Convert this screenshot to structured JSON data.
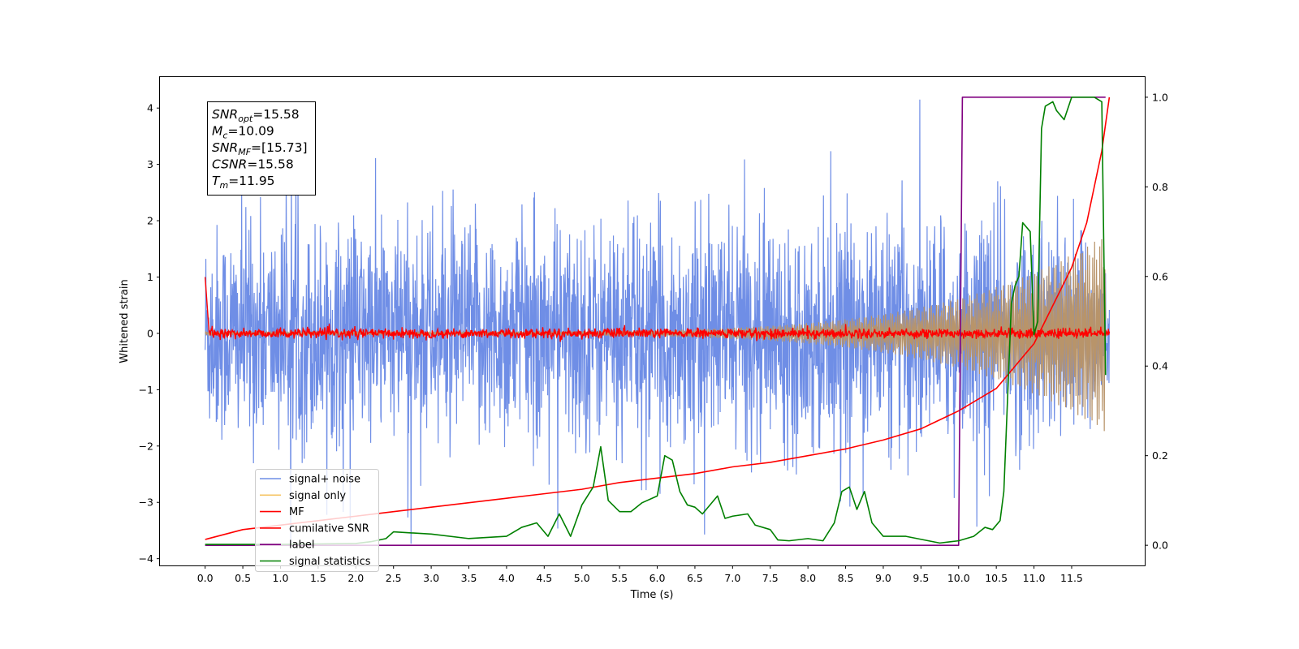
{
  "chart_data": {
    "type": "line",
    "title": "",
    "xlabel": "Time (s)",
    "ylabel": "Whitened strain",
    "xlim": [
      -0.6,
      12.47
    ],
    "ylim_left": [
      -4.12,
      4.55
    ],
    "ylim_right": [
      -0.045,
      1.045
    ],
    "grid": false,
    "legend_placement": "lower-left",
    "x_ticks": [
      "0.0",
      "0.5",
      "1.0",
      "1.5",
      "2.0",
      "2.5",
      "3.0",
      "3.5",
      "4.0",
      "4.5",
      "5.0",
      "5.5",
      "6.0",
      "6.5",
      "7.0",
      "7.5",
      "8.0",
      "8.5",
      "9.0",
      "9.5",
      "10.0",
      "10.5",
      "11.0",
      "11.5"
    ],
    "y_ticks_left": [
      "−4",
      "−3",
      "−2",
      "−1",
      "0",
      "1",
      "2",
      "3",
      "4"
    ],
    "y_ticks_right": [
      "0.0",
      "0.2",
      "0.4",
      "0.6",
      "0.8",
      "1.0"
    ],
    "annotation_box": {
      "lines": [
        {
          "main": "SNR",
          "sub": "opt",
          "rest": "=15.58"
        },
        {
          "main": "M",
          "sub": "c",
          "rest": "=10.09"
        },
        {
          "main": "SNR",
          "sub": "MF",
          "rest": "=[15.73]"
        },
        {
          "main": "CSNR",
          "sub": "",
          "rest": "=15.58"
        },
        {
          "main": "T",
          "sub": "m",
          "rest": "=11.95"
        }
      ]
    },
    "colors": {
      "noise": "#6f8ee6",
      "signal": "#b8946a",
      "signal_legend": "#f5c463",
      "mf": "#ff0000",
      "csnr": "#ff0000",
      "label": "#800080",
      "stats": "#008000"
    },
    "series": [
      {
        "name": "signal+ noise",
        "axis": "left",
        "style": "band",
        "t_start": 0.0,
        "t_end": 12.0,
        "typical_amplitude": 1.9,
        "peak_amplitude": 4.15
      },
      {
        "name": "signal only",
        "axis": "left",
        "style": "chirp",
        "t_start": 0.0,
        "t_end": 11.95,
        "amplitude_start": 0.03,
        "amplitude_end": 1.75
      },
      {
        "name": "MF",
        "axis": "left",
        "style": "noise",
        "t_start": 0.0,
        "t_end": 12.0,
        "start_value": 1.0,
        "amplitude": 0.08
      },
      {
        "name": "cumilative SNR",
        "axis": "right",
        "x": [
          0.0,
          0.5,
          1.0,
          1.5,
          2.0,
          2.5,
          3.0,
          3.5,
          4.0,
          4.5,
          5.0,
          5.5,
          6.0,
          6.5,
          7.0,
          7.5,
          8.0,
          8.5,
          9.0,
          9.5,
          10.0,
          10.5,
          11.0,
          11.5,
          11.7,
          11.9,
          12.0
        ],
        "y": [
          0.013,
          0.035,
          0.045,
          0.055,
          0.065,
          0.075,
          0.085,
          0.095,
          0.105,
          0.115,
          0.125,
          0.14,
          0.15,
          0.16,
          0.175,
          0.185,
          0.2,
          0.215,
          0.235,
          0.26,
          0.3,
          0.35,
          0.45,
          0.62,
          0.72,
          0.88,
          1.0
        ]
      },
      {
        "name": "label",
        "axis": "right",
        "x": [
          0.0,
          10.0,
          10.05,
          11.95
        ],
        "y": [
          0.0,
          0.0,
          1.0,
          1.0
        ]
      },
      {
        "name": "signal statistics",
        "axis": "right",
        "x": [
          0.0,
          1.0,
          2.0,
          2.2,
          2.4,
          2.5,
          3.0,
          3.5,
          4.0,
          4.2,
          4.4,
          4.55,
          4.7,
          4.85,
          5.0,
          5.15,
          5.25,
          5.35,
          5.5,
          5.65,
          5.8,
          6.0,
          6.1,
          6.2,
          6.3,
          6.4,
          6.5,
          6.6,
          6.8,
          6.9,
          7.0,
          7.2,
          7.3,
          7.5,
          7.6,
          7.75,
          8.0,
          8.2,
          8.35,
          8.45,
          8.55,
          8.65,
          8.75,
          8.85,
          9.0,
          9.15,
          9.3,
          9.6,
          9.75,
          9.9,
          10.0,
          10.2,
          10.35,
          10.45,
          10.55,
          10.6,
          10.7,
          10.75,
          10.8,
          10.85,
          10.95,
          11.0,
          11.05,
          11.1,
          11.15,
          11.25,
          11.3,
          11.4,
          11.5,
          11.6,
          11.8,
          11.9,
          11.95
        ],
        "y": [
          0.002,
          0.002,
          0.004,
          0.008,
          0.015,
          0.03,
          0.025,
          0.015,
          0.02,
          0.04,
          0.05,
          0.02,
          0.07,
          0.02,
          0.09,
          0.13,
          0.22,
          0.1,
          0.075,
          0.075,
          0.095,
          0.11,
          0.2,
          0.19,
          0.12,
          0.09,
          0.085,
          0.07,
          0.11,
          0.06,
          0.065,
          0.07,
          0.045,
          0.035,
          0.012,
          0.01,
          0.015,
          0.01,
          0.05,
          0.12,
          0.13,
          0.08,
          0.12,
          0.05,
          0.02,
          0.02,
          0.02,
          0.01,
          0.005,
          0.008,
          0.01,
          0.02,
          0.04,
          0.035,
          0.055,
          0.12,
          0.54,
          0.58,
          0.6,
          0.72,
          0.7,
          0.47,
          0.5,
          0.93,
          0.98,
          0.99,
          0.97,
          0.95,
          1.0,
          1.0,
          1.0,
          0.99,
          0.38
        ]
      }
    ]
  }
}
